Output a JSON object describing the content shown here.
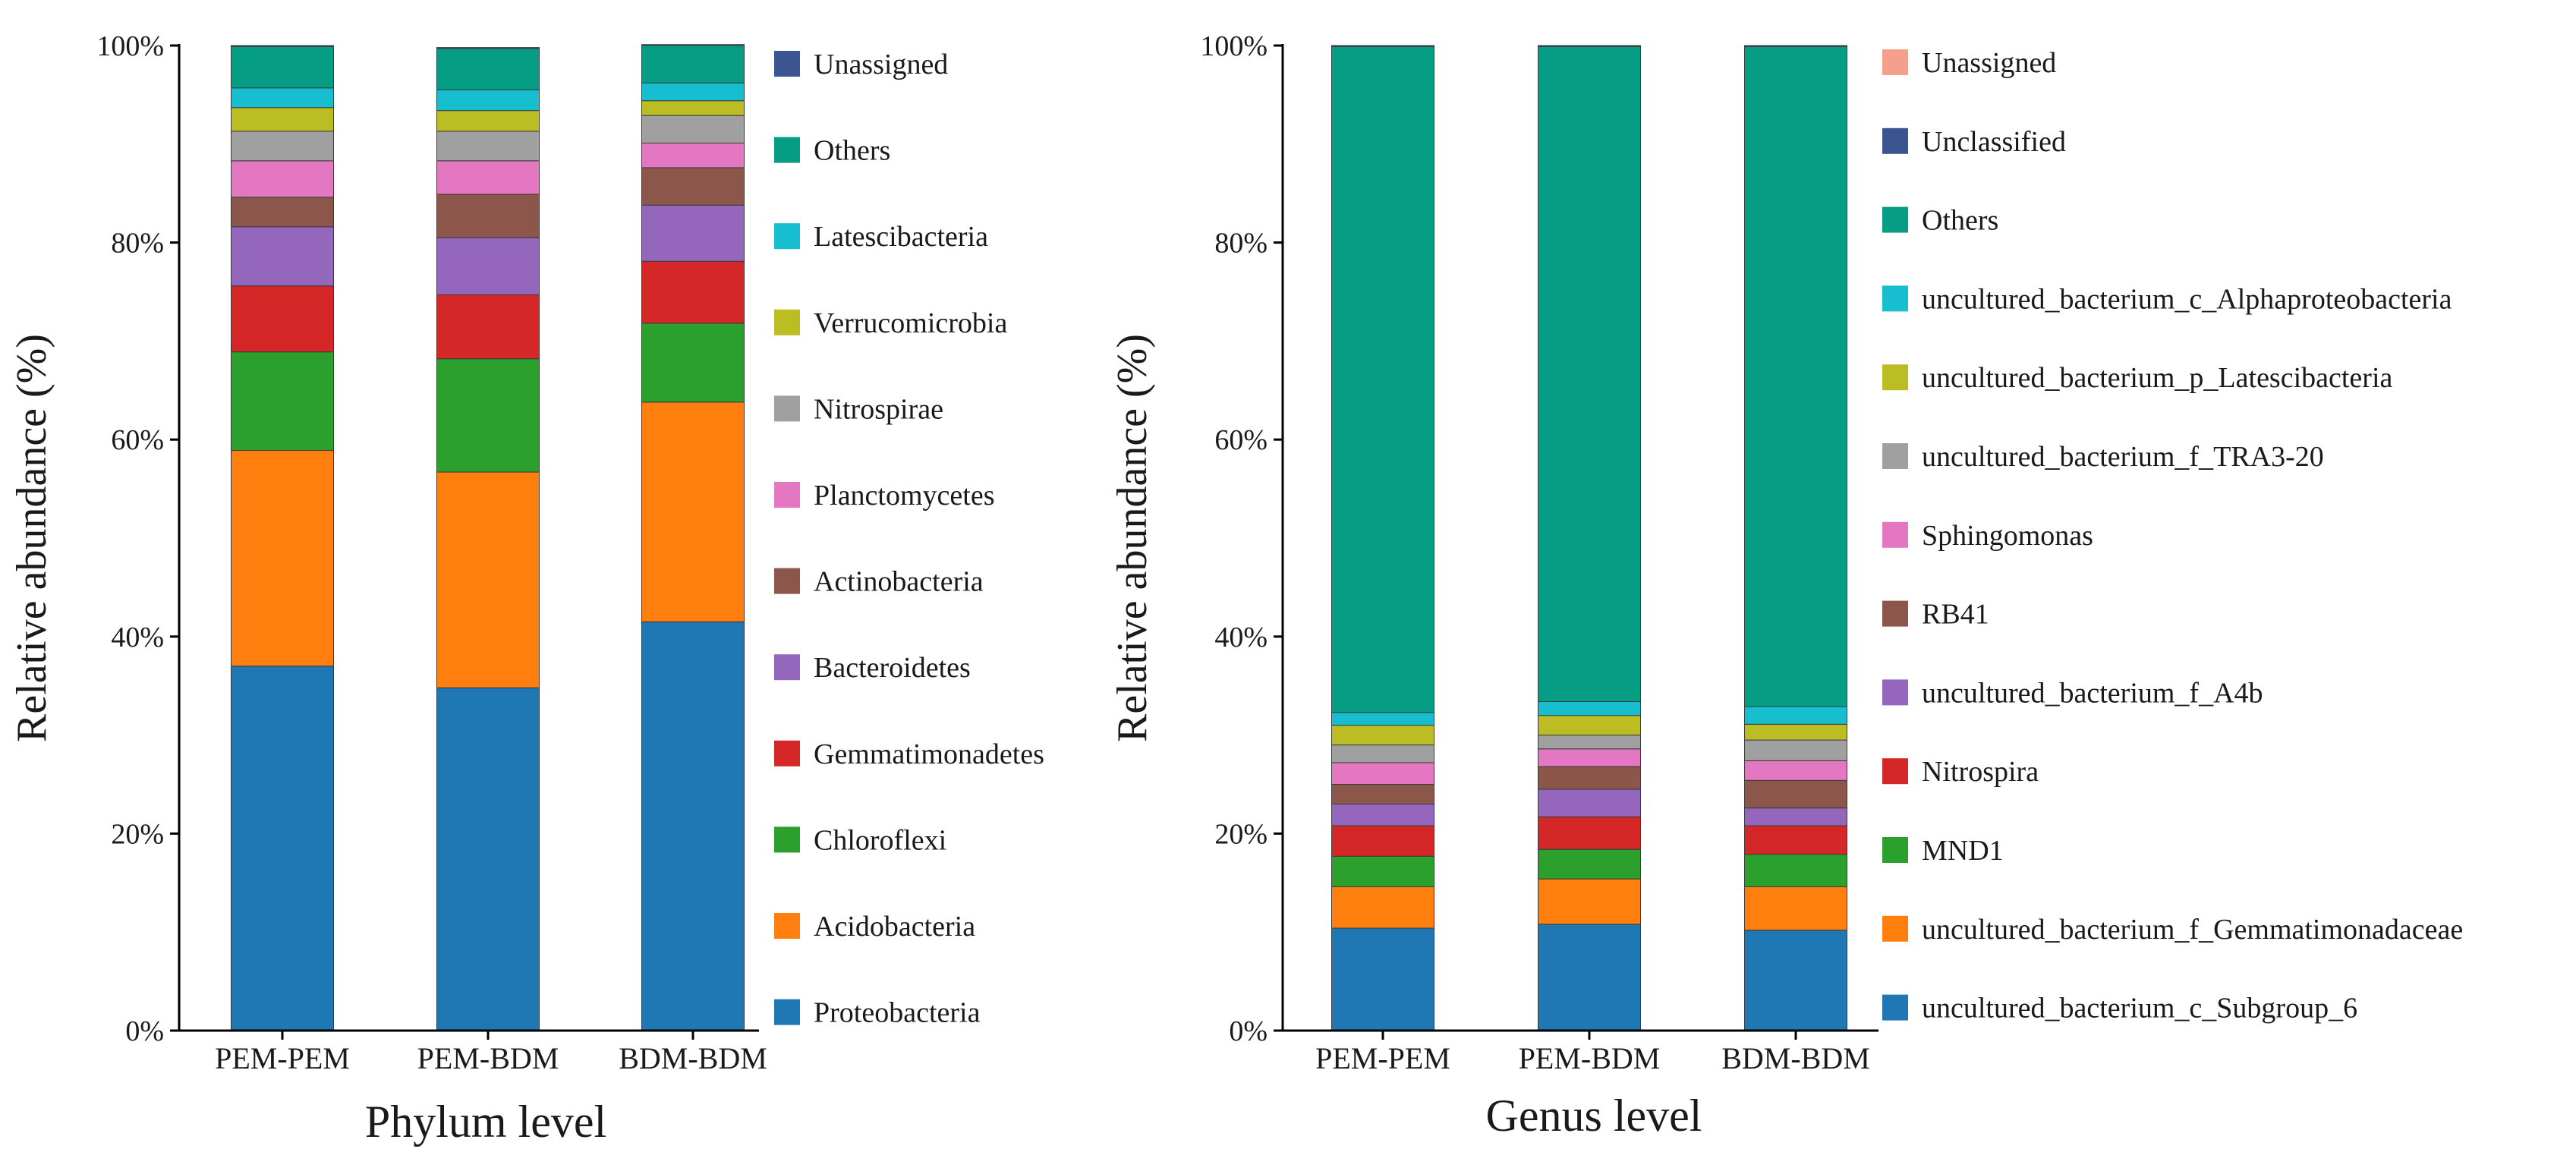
{
  "chart_data": [
    {
      "type": "bar",
      "stacked": true,
      "xlabel": "Phylum level",
      "ylabel": "Relative abundance (%)",
      "ylim": [
        0,
        100
      ],
      "yticks": [
        "0%",
        "20%",
        "40%",
        "60%",
        "80%",
        "100%"
      ],
      "categories": [
        "PEM-PEM",
        "PEM-BDM",
        "BDM-BDM"
      ],
      "grid": false,
      "legend_position": "right",
      "series": [
        {
          "name": "Proteobacteria",
          "color": "#1f77b4",
          "values": [
            37.0,
            34.8,
            41.5
          ]
        },
        {
          "name": "Acidobacteria",
          "color": "#ff7f0e",
          "values": [
            21.9,
            21.9,
            22.3
          ]
        },
        {
          "name": "Chloroflexi",
          "color": "#2ca02c",
          "values": [
            10.0,
            11.5,
            8.0
          ]
        },
        {
          "name": "Gemmatimonadetes",
          "color": "#d62728",
          "values": [
            6.7,
            6.5,
            6.3
          ]
        },
        {
          "name": "Bacteroidetes",
          "color": "#9467bd",
          "values": [
            6.0,
            5.8,
            5.7
          ]
        },
        {
          "name": "Actinobacteria",
          "color": "#8c564b",
          "values": [
            3.0,
            4.4,
            3.8
          ]
        },
        {
          "name": "Planctomycetes",
          "color": "#e377c2",
          "values": [
            3.7,
            3.4,
            2.5
          ]
        },
        {
          "name": "Nitrospirae",
          "color": "#a0a0a0",
          "values": [
            3.0,
            3.0,
            2.8
          ]
        },
        {
          "name": "Verrucomicrobia",
          "color": "#bcbd22",
          "values": [
            2.4,
            2.1,
            1.5
          ]
        },
        {
          "name": "Latescibacteria",
          "color": "#17becf",
          "values": [
            2.0,
            2.1,
            1.8
          ]
        },
        {
          "name": "Others",
          "color": "#069d85",
          "values": [
            4.2,
            4.2,
            3.8
          ]
        },
        {
          "name": "Unassigned",
          "color": "#3b5591",
          "values": [
            0.1,
            0.1,
            0.1
          ]
        }
      ]
    },
    {
      "type": "bar",
      "stacked": true,
      "xlabel": "Genus level",
      "ylabel": "Relative abundance (%)",
      "ylim": [
        0,
        100
      ],
      "yticks": [
        "0%",
        "20%",
        "40%",
        "60%",
        "80%",
        "100%"
      ],
      "categories": [
        "PEM-PEM",
        "PEM-BDM",
        "BDM-BDM"
      ],
      "grid": false,
      "legend_position": "right",
      "series": [
        {
          "name": "uncultured_bacterium_c_Subgroup_6",
          "color": "#1f77b4",
          "values": [
            10.4,
            10.8,
            10.2
          ]
        },
        {
          "name": "uncultured_bacterium_f_Gemmatimonadaceae",
          "color": "#ff7f0e",
          "values": [
            4.2,
            4.6,
            4.4
          ]
        },
        {
          "name": "MND1",
          "color": "#2ca02c",
          "values": [
            3.1,
            3.0,
            3.3
          ]
        },
        {
          "name": "Nitrospira",
          "color": "#d62728",
          "values": [
            3.1,
            3.3,
            2.9
          ]
        },
        {
          "name": "uncultured_bacterium_f_A4b",
          "color": "#9467bd",
          "values": [
            2.2,
            2.8,
            1.8
          ]
        },
        {
          "name": "RB41",
          "color": "#8c564b",
          "values": [
            2.0,
            2.3,
            2.8
          ]
        },
        {
          "name": "Sphingomonas",
          "color": "#e377c2",
          "values": [
            2.2,
            1.8,
            2.0
          ]
        },
        {
          "name": "uncultured_bacterium_f_TRA3-20",
          "color": "#a0a0a0",
          "values": [
            1.8,
            1.4,
            2.1
          ]
        },
        {
          "name": "uncultured_bacterium_p_Latescibacteria",
          "color": "#bcbd22",
          "values": [
            2.0,
            2.0,
            1.6
          ]
        },
        {
          "name": "uncultured_bacterium_c_Alphaproteobacteria",
          "color": "#17becf",
          "values": [
            1.3,
            1.4,
            1.8
          ]
        },
        {
          "name": "Others",
          "color": "#069d85",
          "values": [
            67.6,
            66.5,
            67.0
          ]
        },
        {
          "name": "Unclassified",
          "color": "#3b5591",
          "values": [
            0.1,
            0.1,
            0.1
          ]
        },
        {
          "name": "Unassigned",
          "color": "#f4a08a",
          "values": [
            0.0,
            0.0,
            0.0
          ]
        }
      ]
    }
  ]
}
